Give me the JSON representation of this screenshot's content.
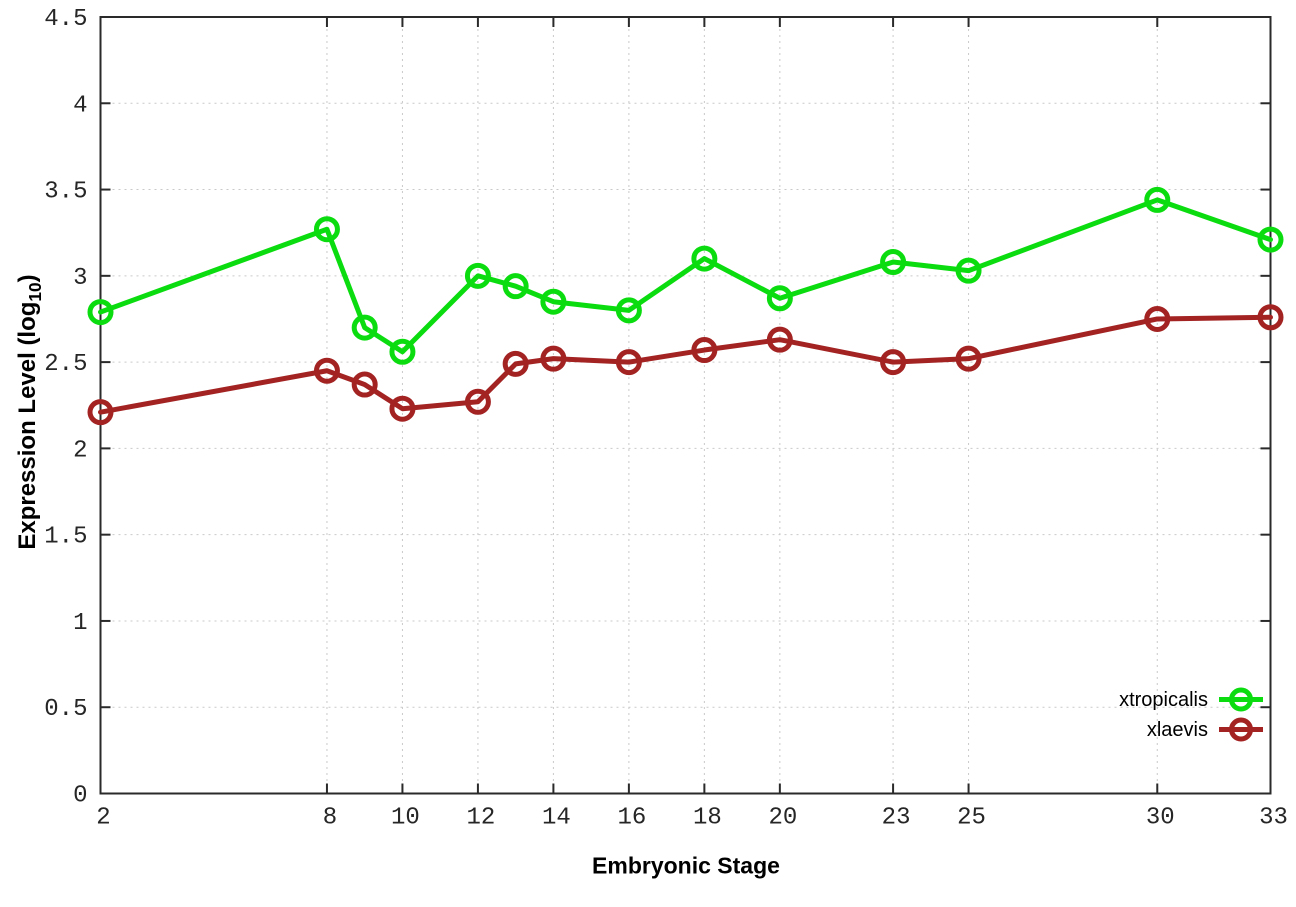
{
  "chart_data": {
    "type": "line",
    "title": "",
    "xlabel": "Embryonic Stage",
    "ylabel": "Expression Level (log10)",
    "ylabel_parts": {
      "prefix": "Expression Level (log",
      "subscript": "10",
      "suffix": ")"
    },
    "x": [
      2,
      8,
      9,
      10,
      12,
      13,
      14,
      16,
      18,
      20,
      23,
      25,
      30,
      33
    ],
    "series": [
      {
        "name": "xtropicalis",
        "color": "#0bdc10",
        "values": [
          2.79,
          3.27,
          2.7,
          2.56,
          3.0,
          2.94,
          2.85,
          2.8,
          3.1,
          2.87,
          3.08,
          3.03,
          3.44,
          3.21
        ]
      },
      {
        "name": "xlaevis",
        "color": "#a32323",
        "values": [
          2.21,
          2.45,
          2.37,
          2.23,
          2.27,
          2.49,
          2.52,
          2.5,
          2.57,
          2.63,
          2.5,
          2.52,
          2.75,
          2.76
        ]
      }
    ],
    "xlim": [
      2,
      33
    ],
    "ylim": [
      0,
      4.5
    ],
    "xticks": [
      2,
      8,
      10,
      12,
      14,
      16,
      18,
      20,
      23,
      25,
      30,
      33
    ],
    "xtick_labels": [
      "2",
      "8",
      "10",
      "12",
      "14",
      "16",
      "18",
      "20",
      "23",
      "25",
      "30",
      "33"
    ],
    "yticks": [
      0,
      0.5,
      1,
      1.5,
      2,
      2.5,
      3,
      3.5,
      4,
      4.5
    ],
    "ytick_labels": [
      "0",
      "0.5",
      "1",
      "1.5",
      "2",
      "2.5",
      "3",
      "3.5",
      "4",
      "4.5"
    ],
    "grid": true,
    "legend_position": "bottom-right",
    "marker": "open-circle",
    "colors": {
      "background": "#ffffff",
      "grid": "#c9c9c9",
      "axis": "#2a2a2a",
      "tick_label": "#262626"
    }
  }
}
